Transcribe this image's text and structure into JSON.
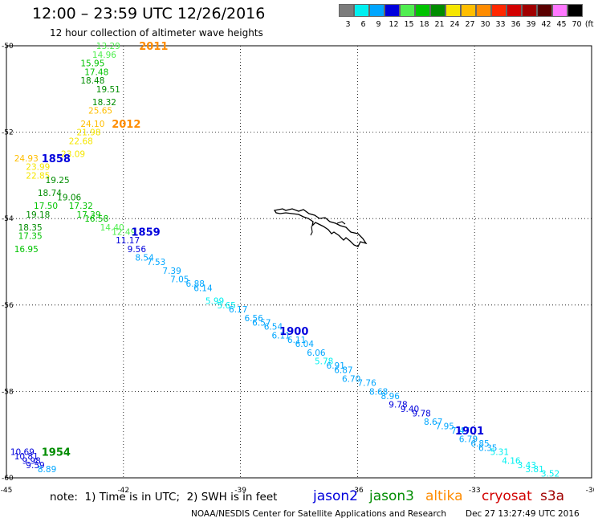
{
  "header": {
    "title": "12:00 – 23:59 UTC 12/26/2016",
    "subtitle": "12 hour collection of altimeter wave heights"
  },
  "color_scale": {
    "unit": "(ft)",
    "bins": [
      {
        "label": "3",
        "color": "#7c7c7c"
      },
      {
        "label": "6",
        "color": "#00f0f0"
      },
      {
        "label": "9",
        "color": "#00a6ff"
      },
      {
        "label": "12",
        "color": "#0000dc"
      },
      {
        "label": "15",
        "color": "#50ee50"
      },
      {
        "label": "18",
        "color": "#00c300"
      },
      {
        "label": "21",
        "color": "#008c00"
      },
      {
        "label": "24",
        "color": "#f5e600"
      },
      {
        "label": "27",
        "color": "#ffbe00"
      },
      {
        "label": "30",
        "color": "#ff8c00"
      },
      {
        "label": "33",
        "color": "#ff2800"
      },
      {
        "label": "36",
        "color": "#d20000"
      },
      {
        "label": "39",
        "color": "#a00000"
      },
      {
        "label": "42",
        "color": "#5a0000"
      },
      {
        "label": "45",
        "color": "#ff78ff"
      },
      {
        "label": "70",
        "color": "#000000"
      }
    ]
  },
  "map": {
    "lon_range": [
      -45,
      -30
    ],
    "lat_range": [
      -60,
      -50
    ],
    "lon_ticks": [
      "-45",
      "-42",
      "-39",
      "-36",
      "-33",
      "-30"
    ],
    "lat_ticks": [
      "-50",
      "-52",
      "-54",
      "-56",
      "-58",
      "-60"
    ],
    "grid": true,
    "time_labels": [
      {
        "text": "2011",
        "color": "#ff8c00",
        "lon": -41.6,
        "lat": -50.0
      },
      {
        "text": "2012",
        "color": "#ff8c00",
        "lon": -42.3,
        "lat": -51.8
      },
      {
        "text": "1858",
        "color": "#0000dc",
        "lon": -44.1,
        "lat": -52.6
      },
      {
        "text": "1859",
        "color": "#0000dc",
        "lon": -41.8,
        "lat": -54.3
      },
      {
        "text": "1900",
        "color": "#0000dc",
        "lon": -38.0,
        "lat": -56.6
      },
      {
        "text": "1901",
        "color": "#0000dc",
        "lon": -33.5,
        "lat": -58.9
      },
      {
        "text": "1954",
        "color": "#008c00",
        "lon": -44.1,
        "lat": -59.4
      }
    ],
    "wave_heights": [
      {
        "text": "13.29",
        "lon": -42.7,
        "lat": -50.0
      },
      {
        "text": "14.96",
        "lon": -42.8,
        "lat": -50.2
      },
      {
        "text": "15.95",
        "lon": -43.1,
        "lat": -50.4
      },
      {
        "text": "17.48",
        "lon": -43.0,
        "lat": -50.6
      },
      {
        "text": "18.48",
        "lon": -43.1,
        "lat": -50.8
      },
      {
        "text": "19.51",
        "lon": -42.7,
        "lat": -51.0
      },
      {
        "text": "18.32",
        "lon": -42.8,
        "lat": -51.3
      },
      {
        "text": "25.65",
        "lon": -42.9,
        "lat": -51.5
      },
      {
        "text": "24.10",
        "lon": -43.1,
        "lat": -51.8
      },
      {
        "text": "21.98",
        "lon": -43.2,
        "lat": -52.0
      },
      {
        "text": "22.68",
        "lon": -43.4,
        "lat": -52.2
      },
      {
        "text": "23.09",
        "lon": -43.6,
        "lat": -52.5
      },
      {
        "text": "24.93",
        "lon": -44.8,
        "lat": -52.6
      },
      {
        "text": "23.99",
        "lon": -44.5,
        "lat": -52.8
      },
      {
        "text": "22.85",
        "lon": -44.5,
        "lat": -53.0
      },
      {
        "text": "19.25",
        "lon": -44.0,
        "lat": -53.1
      },
      {
        "text": "18.74",
        "lon": -44.2,
        "lat": -53.4
      },
      {
        "text": "19.06",
        "lon": -43.7,
        "lat": -53.5
      },
      {
        "text": "17.50",
        "lon": -44.3,
        "lat": -53.7
      },
      {
        "text": "17.32",
        "lon": -43.4,
        "lat": -53.7
      },
      {
        "text": "17.39",
        "lon": -43.2,
        "lat": -53.9
      },
      {
        "text": "19.18",
        "lon": -44.5,
        "lat": -53.9
      },
      {
        "text": "16.58",
        "lon": -43.0,
        "lat": -54.0
      },
      {
        "text": "18.35",
        "lon": -44.7,
        "lat": -54.2
      },
      {
        "text": "14.40",
        "lon": -42.6,
        "lat": -54.2
      },
      {
        "text": "17.35",
        "lon": -44.7,
        "lat": -54.4
      },
      {
        "text": "12.49",
        "lon": -42.3,
        "lat": -54.3
      },
      {
        "text": "11.17",
        "lon": -42.2,
        "lat": -54.5
      },
      {
        "text": "16.95",
        "lon": -44.8,
        "lat": -54.7
      },
      {
        "text": "9.56",
        "lon": -41.9,
        "lat": -54.7
      },
      {
        "text": "8.54",
        "lon": -41.7,
        "lat": -54.9
      },
      {
        "text": "7.53",
        "lon": -41.4,
        "lat": -55.0
      },
      {
        "text": "7.39",
        "lon": -41.0,
        "lat": -55.2
      },
      {
        "text": "7.05",
        "lon": -40.8,
        "lat": -55.4
      },
      {
        "text": "6.88",
        "lon": -40.4,
        "lat": -55.5
      },
      {
        "text": "6.14",
        "lon": -40.2,
        "lat": -55.6
      },
      {
        "text": "5.99",
        "lon": -39.9,
        "lat": -55.9
      },
      {
        "text": "5.65",
        "lon": -39.6,
        "lat": -56.0
      },
      {
        "text": "6.17",
        "lon": -39.3,
        "lat": -56.1
      },
      {
        "text": "6.56",
        "lon": -38.9,
        "lat": -56.3
      },
      {
        "text": "6.57",
        "lon": -38.7,
        "lat": -56.4
      },
      {
        "text": "6.54",
        "lon": -38.4,
        "lat": -56.5
      },
      {
        "text": "6.11",
        "lon": -38.2,
        "lat": -56.7
      },
      {
        "text": "6.11",
        "lon": -37.8,
        "lat": -56.8
      },
      {
        "text": "6.04",
        "lon": -37.6,
        "lat": -56.9
      },
      {
        "text": "6.06",
        "lon": -37.3,
        "lat": -57.1
      },
      {
        "text": "5.78",
        "lon": -37.1,
        "lat": -57.3
      },
      {
        "text": "6.91",
        "lon": -36.8,
        "lat": -57.4
      },
      {
        "text": "6.87",
        "lon": -36.6,
        "lat": -57.5
      },
      {
        "text": "6.70",
        "lon": -36.4,
        "lat": -57.7
      },
      {
        "text": "7.76",
        "lon": -36.0,
        "lat": -57.8
      },
      {
        "text": "8.68",
        "lon": -35.7,
        "lat": -58.0
      },
      {
        "text": "8.96",
        "lon": -35.4,
        "lat": -58.1
      },
      {
        "text": "9.78",
        "lon": -35.2,
        "lat": -58.3
      },
      {
        "text": "9.40",
        "lon": -34.9,
        "lat": -58.4
      },
      {
        "text": "9.78",
        "lon": -34.6,
        "lat": -58.5
      },
      {
        "text": "8.67",
        "lon": -34.3,
        "lat": -58.7
      },
      {
        "text": "7.95",
        "lon": -34.0,
        "lat": -58.8
      },
      {
        "text": "7.47",
        "lon": -33.6,
        "lat": -58.9
      },
      {
        "text": "6.79",
        "lon": -33.4,
        "lat": -59.1
      },
      {
        "text": "6.85",
        "lon": -33.1,
        "lat": -59.2
      },
      {
        "text": "6.35",
        "lon": -32.9,
        "lat": -59.3
      },
      {
        "text": "5.31",
        "lon": -32.6,
        "lat": -59.4
      },
      {
        "text": "4.16",
        "lon": -32.3,
        "lat": -59.6
      },
      {
        "text": "3.43",
        "lon": -31.9,
        "lat": -59.7
      },
      {
        "text": "3.81",
        "lon": -31.7,
        "lat": -59.8
      },
      {
        "text": "3.52",
        "lon": -31.3,
        "lat": -59.9
      },
      {
        "text": "10.69",
        "lon": -44.9,
        "lat": -59.4
      },
      {
        "text": "10.81",
        "lon": -44.8,
        "lat": -59.5
      },
      {
        "text": "9.98",
        "lon": -44.6,
        "lat": -59.6
      },
      {
        "text": "9.59",
        "lon": -44.5,
        "lat": -59.7
      },
      {
        "text": "8.89",
        "lon": -44.2,
        "lat": -59.8
      }
    ]
  },
  "footer": {
    "note": "note:  1) Time is in UTC;  2) SWH is in feet",
    "satellites": [
      {
        "name": "jason2",
        "color": "#0000dc"
      },
      {
        "name": "jason3",
        "color": "#008c00"
      },
      {
        "name": "altika",
        "color": "#ff8c00"
      },
      {
        "name": "cryosat",
        "color": "#d20000"
      },
      {
        "name": "s3a",
        "color": "#a00000"
      }
    ],
    "credit": "NOAA/NESDIS Center for Satellite Applications and Research",
    "timestamp": "Dec 27 13:27:49 UTC 2016"
  }
}
